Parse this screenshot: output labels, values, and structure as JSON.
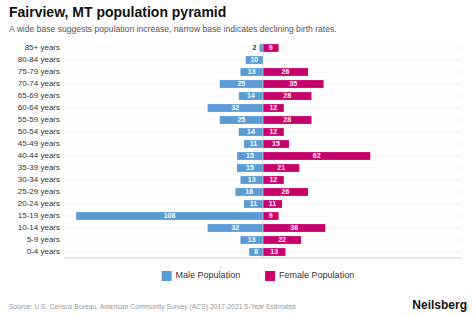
{
  "chart_data": {
    "type": "bar",
    "orientation": "horizontal",
    "title": "Fairview, MT population pyramid",
    "subtitle": "A wide base suggests population increase, narrow base indicates declining birth rates.",
    "source": "Source: U.S. Census Bureau, American Community Survey (ACS) 2017-2021 5-Year Estimates",
    "annotations": [
      "Neilsberg"
    ],
    "categories": [
      "85+ years",
      "80-84 years",
      "75-79 years",
      "70-74 years",
      "65-69 years",
      "60-64 years",
      "55-59 years",
      "50-54 years",
      "45-49 years",
      "40-44 years",
      "35-39 years",
      "30-34 years",
      "25-29 years",
      "20-24 years",
      "15-19 years",
      "10-14 years",
      "5-9 years",
      "0-4 years"
    ],
    "series": [
      {
        "name": "Male Population",
        "color": "#5B9BD5",
        "values": [
          2,
          10,
          13,
          25,
          14,
          32,
          25,
          14,
          11,
          15,
          15,
          13,
          16,
          11,
          108,
          32,
          13,
          8
        ]
      },
      {
        "name": "Female Population",
        "color": "#C7006B",
        "values": [
          9,
          0,
          26,
          35,
          28,
          12,
          28,
          12,
          15,
          62,
          21,
          12,
          26,
          11,
          9,
          36,
          22,
          13
        ]
      }
    ],
    "xlim": [
      -115,
      115
    ],
    "tick_labels": "y",
    "data_labels": true,
    "grid": true,
    "legend": "bottom"
  }
}
